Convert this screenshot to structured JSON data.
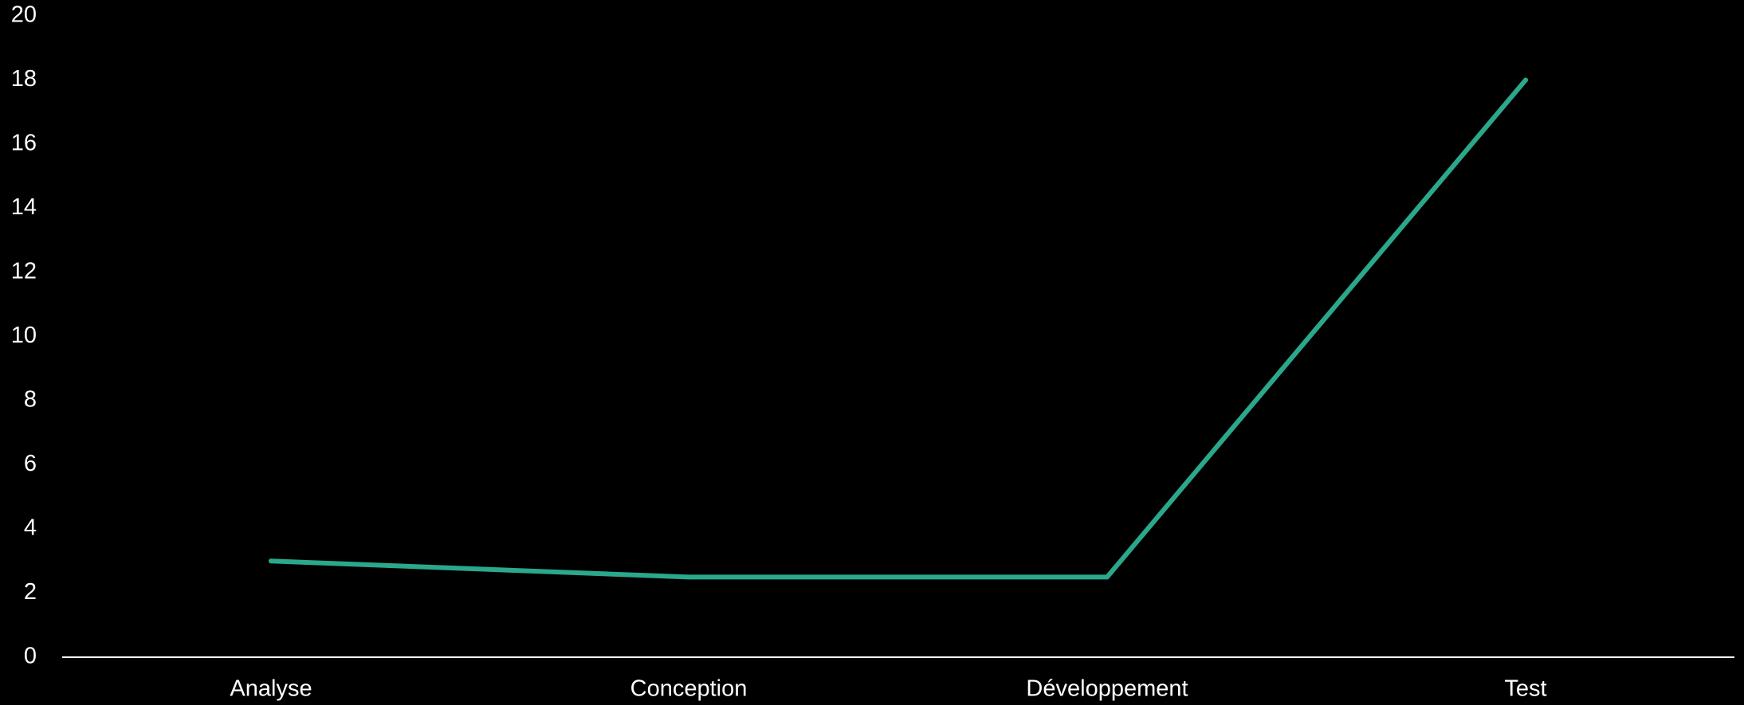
{
  "chart_data": {
    "type": "line",
    "categories": [
      "Analyse",
      "Conception",
      "Développement",
      "Test"
    ],
    "series": [
      {
        "values": [
          3,
          2.5,
          2.5,
          18
        ],
        "color": "#2BA88B"
      }
    ],
    "yticks": [
      "0",
      "2",
      "4",
      "6",
      "8",
      "10",
      "12",
      "14",
      "16",
      "18",
      "20"
    ],
    "ylim": [
      0,
      20
    ],
    "title": "",
    "xlabel": "",
    "ylabel": "",
    "grid": false,
    "legend": "none",
    "background": "#000000",
    "text_color": "#FFFFFF",
    "axis_color": "#FFFFFF"
  }
}
